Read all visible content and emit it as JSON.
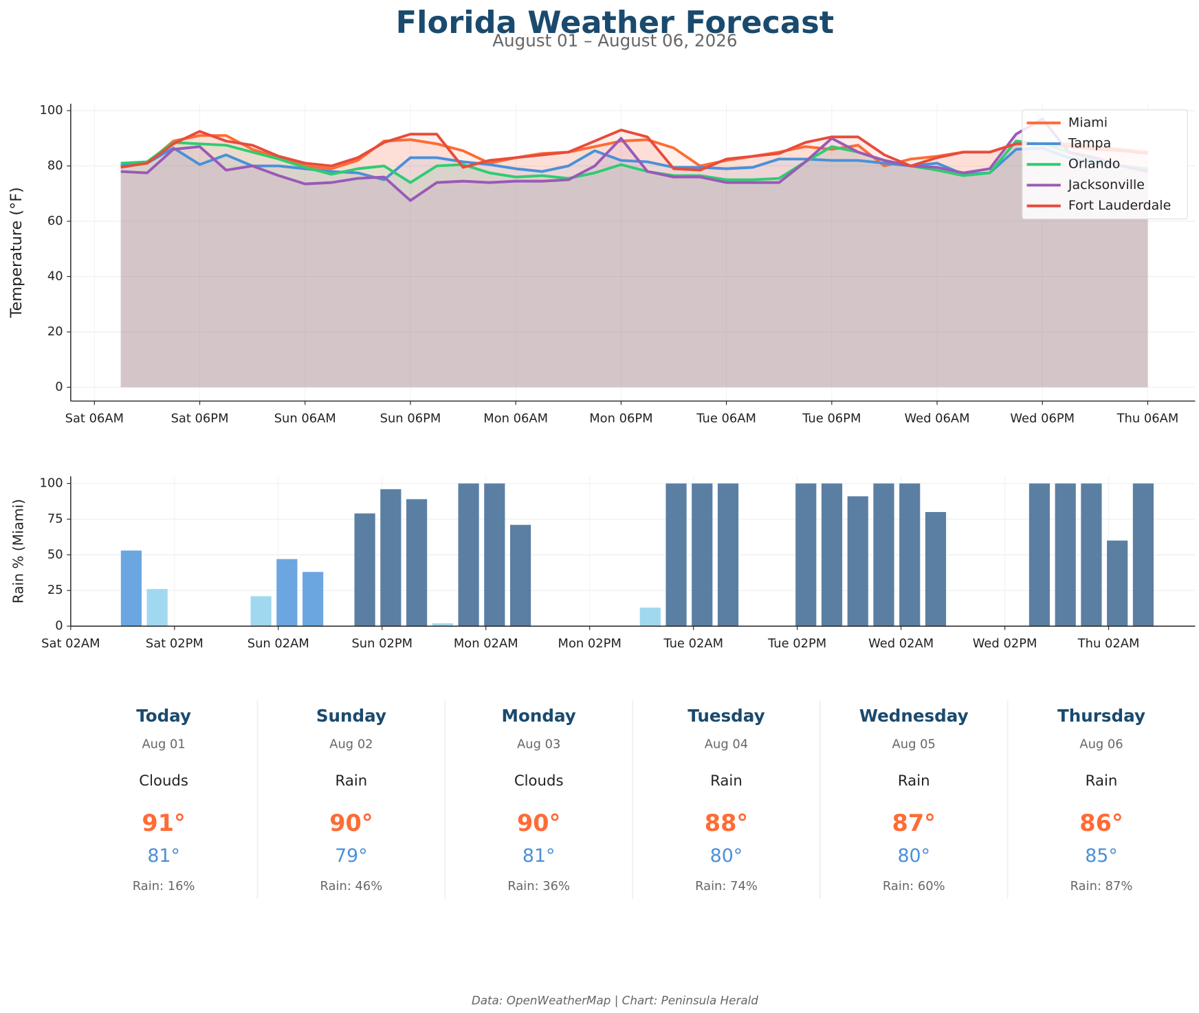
{
  "header": {
    "title": "Florida Weather Forecast",
    "subtitle": "August 01 – August 06, 2026"
  },
  "chart_data": [
    {
      "type": "line",
      "ylabel": "Temperature (°F)",
      "fill": true,
      "grid": true,
      "legend": "upper right",
      "x": [
        9,
        12,
        15,
        18,
        21,
        24,
        27,
        30,
        33,
        36,
        39,
        42,
        45,
        48,
        51,
        54,
        57,
        60,
        63,
        66,
        69,
        72,
        75,
        78,
        81,
        84,
        87,
        90,
        93,
        96,
        99,
        102,
        105,
        108,
        111,
        114,
        117,
        120,
        123,
        126
      ],
      "xlim": [
        3.3,
        131.4
      ],
      "xticks": [
        {
          "value": 6,
          "label": "Sat 06AM"
        },
        {
          "value": 18,
          "label": "Sat 06PM"
        },
        {
          "value": 30,
          "label": "Sun 06AM"
        },
        {
          "value": 42,
          "label": "Sun 06PM"
        },
        {
          "value": 54,
          "label": "Mon 06AM"
        },
        {
          "value": 66,
          "label": "Mon 06PM"
        },
        {
          "value": 78,
          "label": "Tue 06AM"
        },
        {
          "value": 90,
          "label": "Tue 06PM"
        },
        {
          "value": 102,
          "label": "Wed 06AM"
        },
        {
          "value": 114,
          "label": "Wed 06PM"
        },
        {
          "value": 126,
          "label": "Thu 06AM"
        }
      ],
      "ylim": [
        -5,
        102.5
      ],
      "yticks": [
        0,
        20,
        40,
        60,
        80,
        100
      ],
      "series": [
        {
          "name": "Miami",
          "color": "#ff6b35",
          "values": [
            80,
            81,
            89,
            91,
            91,
            86,
            83,
            80,
            79,
            82,
            89,
            89.5,
            88,
            85.5,
            81,
            83,
            84.5,
            85,
            87,
            89,
            89.5,
            86.5,
            80,
            82,
            83.5,
            85,
            87,
            86,
            87.5,
            80,
            82.5,
            83.5,
            85,
            85,
            88,
            88,
            88,
            87,
            86,
            85
          ]
        },
        {
          "name": "Tampa",
          "color": "#4a90d9",
          "values": [
            80,
            81,
            86.5,
            80.5,
            84,
            80,
            80,
            79,
            78,
            77.5,
            75,
            83,
            83,
            81.5,
            80.5,
            79,
            78,
            80,
            85.5,
            82,
            81.5,
            79.5,
            79.5,
            79,
            79.5,
            82.5,
            82.5,
            82,
            82,
            81,
            80,
            81,
            77,
            77.5,
            86,
            86.5,
            83,
            81,
            80,
            79
          ]
        },
        {
          "name": "Orlando",
          "color": "#2ecc71",
          "values": [
            81,
            81.5,
            88.5,
            88,
            87.5,
            85,
            82.5,
            79.5,
            77,
            79,
            80,
            74,
            80,
            80.5,
            77.5,
            76,
            76.5,
            75.5,
            77.5,
            80.5,
            78,
            76.5,
            76.5,
            75,
            75,
            75.5,
            81.5,
            87,
            85,
            82,
            80,
            78.5,
            76.5,
            77.5,
            89,
            88,
            85,
            82,
            80,
            79
          ]
        },
        {
          "name": "Jacksonville",
          "color": "#9b59b6",
          "values": [
            78,
            77.5,
            86,
            87,
            78.5,
            80,
            76.5,
            73.5,
            74,
            75.5,
            76,
            67.5,
            74,
            74.5,
            74,
            74.5,
            74.5,
            75,
            80,
            90,
            78,
            76,
            76,
            74,
            74,
            74,
            81.5,
            90,
            85,
            82,
            80,
            79.5,
            77.5,
            79,
            91.5,
            97,
            85,
            83,
            80,
            78
          ]
        },
        {
          "name": "Fort Lauderdale",
          "color": "#e74c3c",
          "values": [
            79.5,
            81,
            88,
            92.5,
            89,
            87.5,
            83.5,
            81,
            80,
            83,
            88.5,
            91.5,
            91.5,
            79.5,
            82,
            83,
            84,
            85,
            89,
            93,
            90.5,
            79,
            78.5,
            82.5,
            83.5,
            84.5,
            88.5,
            90.5,
            90.5,
            84,
            80,
            83,
            85,
            85,
            88,
            88,
            87,
            86,
            85.5,
            84.5
          ]
        }
      ]
    },
    {
      "type": "bar",
      "ylabel": "Rain % (Miami)",
      "grid": true,
      "x": [
        9,
        12,
        15,
        18,
        21,
        24,
        27,
        30,
        33,
        36,
        39,
        42,
        45,
        48,
        51,
        54,
        57,
        60,
        63,
        66,
        69,
        72,
        75,
        78,
        81,
        84,
        87,
        90,
        93,
        96,
        99,
        102,
        105,
        108,
        111,
        114,
        117,
        120,
        123,
        126
      ],
      "values": [
        53,
        26,
        0,
        0,
        0,
        21,
        47,
        38,
        0,
        79,
        96,
        89,
        2,
        100,
        100,
        71,
        0,
        0,
        0,
        0,
        13,
        100,
        100,
        100,
        0,
        0,
        100,
        100,
        91,
        100,
        100,
        80,
        0,
        0,
        0,
        100,
        100,
        100,
        60,
        100
      ],
      "colors": [
        "#6ca6e0",
        "#a0d8ef",
        "#a0d8ef",
        "#a0d8ef",
        "#a0d8ef",
        "#a0d8ef",
        "#6ca6e0",
        "#6ca6e0",
        "#a0d8ef",
        "#5a7fa3",
        "#5a7fa3",
        "#5a7fa3",
        "#a0d8ef",
        "#5a7fa3",
        "#5a7fa3",
        "#5a7fa3",
        "#a0d8ef",
        "#a0d8ef",
        "#a0d8ef",
        "#a0d8ef",
        "#a0d8ef",
        "#5a7fa3",
        "#5a7fa3",
        "#5a7fa3",
        "#a0d8ef",
        "#a0d8ef",
        "#5a7fa3",
        "#5a7fa3",
        "#5a7fa3",
        "#5a7fa3",
        "#5a7fa3",
        "#5a7fa3",
        "#a0d8ef",
        "#a0d8ef",
        "#a0d8ef",
        "#5a7fa3",
        "#5a7fa3",
        "#5a7fa3",
        "#5a7fa3",
        "#5a7fa3"
      ],
      "xlim": [
        2,
        132
      ],
      "xticks": [
        {
          "value": 2,
          "label": "Sat 02AM"
        },
        {
          "value": 14,
          "label": "Sat 02PM"
        },
        {
          "value": 26,
          "label": "Sun 02AM"
        },
        {
          "value": 38,
          "label": "Sun 02PM"
        },
        {
          "value": 50,
          "label": "Mon 02AM"
        },
        {
          "value": 62,
          "label": "Mon 02PM"
        },
        {
          "value": 74,
          "label": "Tue 02AM"
        },
        {
          "value": 86,
          "label": "Tue 02PM"
        },
        {
          "value": 98,
          "label": "Wed 02AM"
        },
        {
          "value": 110,
          "label": "Wed 02PM"
        },
        {
          "value": 122,
          "label": "Thu 02AM"
        }
      ],
      "ylim": [
        0,
        105
      ],
      "yticks": [
        0,
        25,
        50,
        75,
        100
      ]
    }
  ],
  "forecast": [
    {
      "day": "Today",
      "date": "Aug 01",
      "condition": "Clouds",
      "high": "91°",
      "low": "81°",
      "rain": "Rain: 16%"
    },
    {
      "day": "Sunday",
      "date": "Aug 02",
      "condition": "Rain",
      "high": "90°",
      "low": "79°",
      "rain": "Rain: 46%"
    },
    {
      "day": "Monday",
      "date": "Aug 03",
      "condition": "Clouds",
      "high": "90°",
      "low": "81°",
      "rain": "Rain: 36%"
    },
    {
      "day": "Tuesday",
      "date": "Aug 04",
      "condition": "Rain",
      "high": "88°",
      "low": "80°",
      "rain": "Rain: 74%"
    },
    {
      "day": "Wednesday",
      "date": "Aug 05",
      "condition": "Rain",
      "high": "87°",
      "low": "80°",
      "rain": "Rain: 60%"
    },
    {
      "day": "Thursday",
      "date": "Aug 06",
      "condition": "Rain",
      "high": "86°",
      "low": "85°",
      "rain": "Rain: 87%"
    }
  ],
  "footer": "Data: OpenWeatherMap | Chart: Peninsula Herald"
}
